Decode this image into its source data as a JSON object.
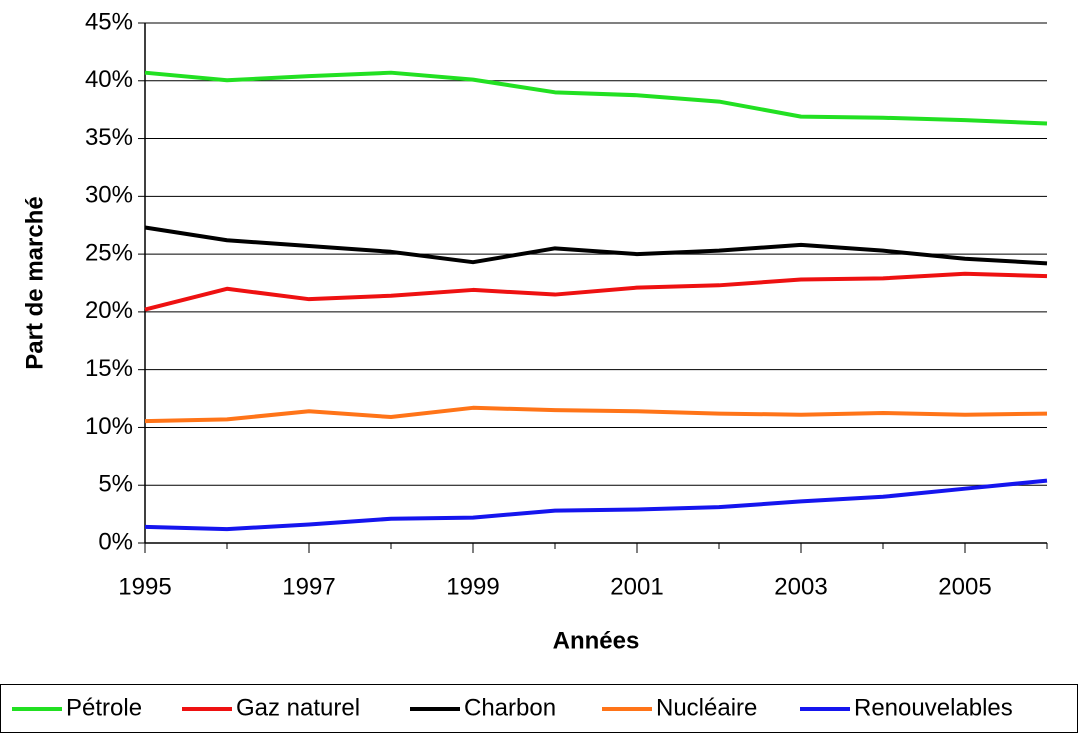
{
  "chart_data": {
    "type": "line",
    "x_label": "Années",
    "y_label": "Part de marché",
    "x": [
      1995,
      1996,
      1997,
      1998,
      1999,
      2000,
      2001,
      2002,
      2003,
      2004,
      2005,
      2006
    ],
    "xlim": [
      1995,
      2006
    ],
    "xticks": [
      1995,
      1997,
      1999,
      2001,
      2003,
      2005
    ],
    "ylim": [
      0,
      45
    ],
    "yticks": [
      {
        "value": 0,
        "label": "0%"
      },
      {
        "value": 5,
        "label": "5%"
      },
      {
        "value": 10,
        "label": "10%"
      },
      {
        "value": 15,
        "label": "15%"
      },
      {
        "value": 20,
        "label": "20%"
      },
      {
        "value": 25,
        "label": "25%"
      },
      {
        "value": 30,
        "label": "30%"
      },
      {
        "value": 35,
        "label": "35%"
      },
      {
        "value": 40,
        "label": "40%"
      },
      {
        "value": 45,
        "label": "45%"
      }
    ],
    "grid": true,
    "legend": "bottom",
    "series": [
      {
        "name": "Pétrole",
        "color": "#22e022",
        "values": [
          40.7,
          40.05,
          40.4,
          40.7,
          40.1,
          39.0,
          38.75,
          38.2,
          36.9,
          36.8,
          36.6,
          36.3
        ]
      },
      {
        "name": "Gaz naturel",
        "color": "#ee1111",
        "values": [
          20.2,
          22.0,
          21.1,
          21.4,
          21.9,
          21.5,
          22.1,
          22.3,
          22.8,
          22.9,
          23.3,
          23.1
        ]
      },
      {
        "name": "Charbon",
        "color": "#000000",
        "values": [
          27.3,
          26.2,
          25.7,
          25.2,
          24.3,
          25.5,
          25.0,
          25.3,
          25.8,
          25.3,
          24.6,
          24.2
        ]
      },
      {
        "name": "Nucléaire",
        "color": "#ff7418",
        "values": [
          10.55,
          10.7,
          11.4,
          10.9,
          11.7,
          11.5,
          11.4,
          11.2,
          11.1,
          11.25,
          11.1,
          11.2
        ]
      },
      {
        "name": "Renouvelables",
        "color": "#1515ee",
        "values": [
          1.4,
          1.2,
          1.6,
          2.1,
          2.2,
          2.8,
          2.9,
          3.1,
          3.6,
          4.0,
          4.7,
          5.4
        ]
      }
    ]
  }
}
